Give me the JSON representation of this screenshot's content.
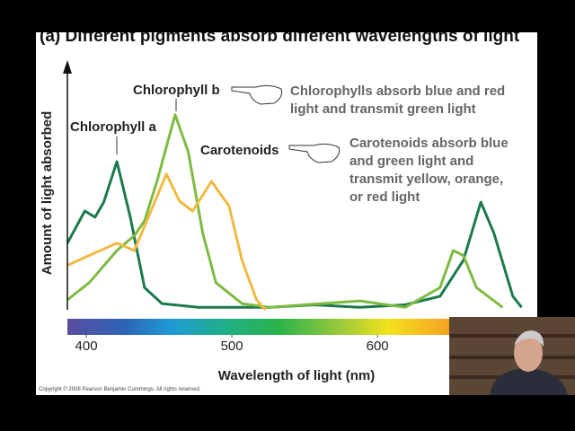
{
  "chart_data": {
    "type": "line",
    "title": "(a) Different pigments absorb different wavelengths of light",
    "xlabel": "Wavelength of light (nm)",
    "ylabel": "Amount of light absorbed",
    "xlim": [
      387,
      711
    ],
    "xticks": [
      400,
      500,
      600
    ],
    "ylim": [
      0,
      100
    ],
    "series": [
      {
        "name": "Chlorophyll a",
        "color": "#1b7a4c",
        "x": [
          387,
          399,
          406,
          412,
          421,
          430,
          440,
          452,
          477,
          526,
          557,
          588,
          619,
          643,
          659,
          671,
          680,
          693,
          699
        ],
        "values": [
          27,
          40,
          37.5,
          43.6,
          60,
          38,
          9,
          2.5,
          1,
          1,
          2,
          1,
          2,
          5.5,
          20,
          43.6,
          31,
          5.5,
          1
        ]
      },
      {
        "name": "Chlorophyll b",
        "color": "#7dbb42",
        "x": [
          387,
          402,
          421,
          433,
          440,
          449,
          461,
          470,
          480,
          489,
          507,
          526,
          588,
          619,
          643,
          652,
          659,
          668,
          686
        ],
        "values": [
          4,
          11,
          24,
          30,
          36,
          53,
          79,
          64,
          31,
          11,
          2.5,
          1,
          3.6,
          1,
          9,
          24,
          22,
          9,
          1
        ]
      },
      {
        "name": "Carotenoids",
        "color": "#f0b942",
        "x": [
          387,
          402,
          421,
          433,
          443,
          455,
          464,
          473,
          486,
          498,
          507,
          517,
          523
        ],
        "values": [
          18,
          22,
          27,
          24,
          38,
          55,
          44,
          40,
          52,
          42,
          20,
          4,
          0
        ]
      }
    ],
    "annotations": [
      [
        "Chlorophylls absorb blue and red",
        "light and transmit green light"
      ],
      [
        "Carotenoids absorb blue",
        "and green light and",
        "transmit yellow, orange,",
        "or red light"
      ]
    ],
    "copyright": "Copyright © 2008 Pearson Benjamin Cummings. All rights reserved."
  }
}
